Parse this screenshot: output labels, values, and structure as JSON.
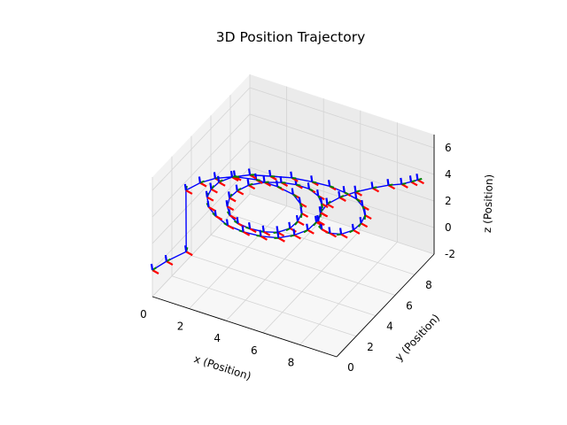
{
  "chart_data": {
    "type": "line",
    "title": "3D Position Trajectory",
    "xlabel": "x (Position)",
    "ylabel": "y (Position)",
    "zlabel": "z (Position)",
    "xlim": [
      0,
      10
    ],
    "ylim": [
      0,
      10
    ],
    "zlim": [
      -2,
      7
    ],
    "x_ticks": [
      "0",
      "2",
      "4",
      "6",
      "8"
    ],
    "y_ticks": [
      "0",
      "2",
      "4",
      "6",
      "8"
    ],
    "z_ticks": [
      "-2",
      "0",
      "2",
      "4",
      "6"
    ],
    "grid": true,
    "colors": {
      "path": "#0000ff",
      "frame_x": "#ff0000",
      "frame_y": "#008000",
      "frame_z": "#0000ff",
      "pane": "#f2f2f2",
      "grid": "#d4d4d4"
    },
    "series": [
      {
        "x": [
          0.0,
          0.5,
          1.2,
          0.5,
          0.9,
          1.4,
          2.2,
          3.2,
          4.3,
          5.2,
          5.8,
          6.2,
          6.3,
          6.2,
          5.8,
          5.2,
          4.5,
          3.8,
          3.2,
          2.8,
          2.6,
          2.7,
          3.0,
          3.6,
          4.3,
          5.0,
          5.7,
          6.3,
          6.7,
          7.0,
          7.1,
          7.0,
          6.6,
          6.0,
          5.2,
          4.3,
          3.4,
          2.6,
          2.0,
          1.6,
          1.5,
          1.6,
          2.0,
          2.7,
          3.6,
          4.6,
          5.6,
          6.5,
          7.3,
          8.0,
          8.5,
          8.9,
          9.0,
          8.9,
          8.5,
          8.0,
          7.5,
          7.1,
          6.9,
          6.9,
          7.2,
          7.7,
          8.3,
          8.9,
          9.4,
          9.7,
          9.9
        ],
        "y": [
          0.0,
          0.5,
          1.2,
          2.5,
          3.2,
          3.8,
          4.3,
          4.6,
          4.7,
          4.6,
          4.2,
          3.6,
          3.0,
          2.4,
          1.9,
          1.6,
          1.5,
          1.6,
          1.9,
          2.4,
          3.0,
          3.6,
          4.2,
          4.7,
          5.1,
          5.3,
          5.3,
          5.1,
          4.7,
          4.1,
          3.4,
          2.7,
          2.1,
          1.6,
          1.3,
          1.2,
          1.3,
          1.6,
          2.0,
          2.6,
          3.2,
          3.8,
          4.4,
          4.9,
          5.3,
          5.6,
          5.8,
          5.9,
          5.9,
          5.8,
          5.5,
          5.0,
          4.4,
          3.8,
          3.3,
          3.1,
          3.2,
          3.6,
          4.2,
          4.9,
          5.6,
          6.3,
          6.9,
          7.4,
          7.8,
          8.2,
          8.5
        ],
        "z": [
          0.0,
          0.5,
          1.0,
          4.3,
          4.5,
          4.6,
          4.7,
          4.7,
          4.6,
          4.5,
          4.4,
          4.3,
          4.2,
          4.1,
          4.0,
          4.0,
          4.0,
          4.0,
          4.1,
          4.2,
          4.3,
          4.4,
          4.5,
          4.6,
          4.6,
          4.6,
          4.6,
          4.5,
          4.4,
          4.3,
          4.2,
          4.1,
          4.0,
          3.9,
          3.9,
          3.9,
          3.9,
          4.0,
          4.1,
          4.2,
          4.3,
          4.4,
          4.5,
          4.6,
          4.6,
          4.7,
          4.7,
          4.7,
          4.6,
          4.5,
          4.4,
          4.3,
          4.2,
          4.1,
          4.0,
          4.0,
          4.0,
          4.1,
          4.2,
          4.3,
          4.4,
          4.5,
          4.6,
          4.7,
          4.7,
          4.7,
          4.7
        ]
      }
    ]
  }
}
